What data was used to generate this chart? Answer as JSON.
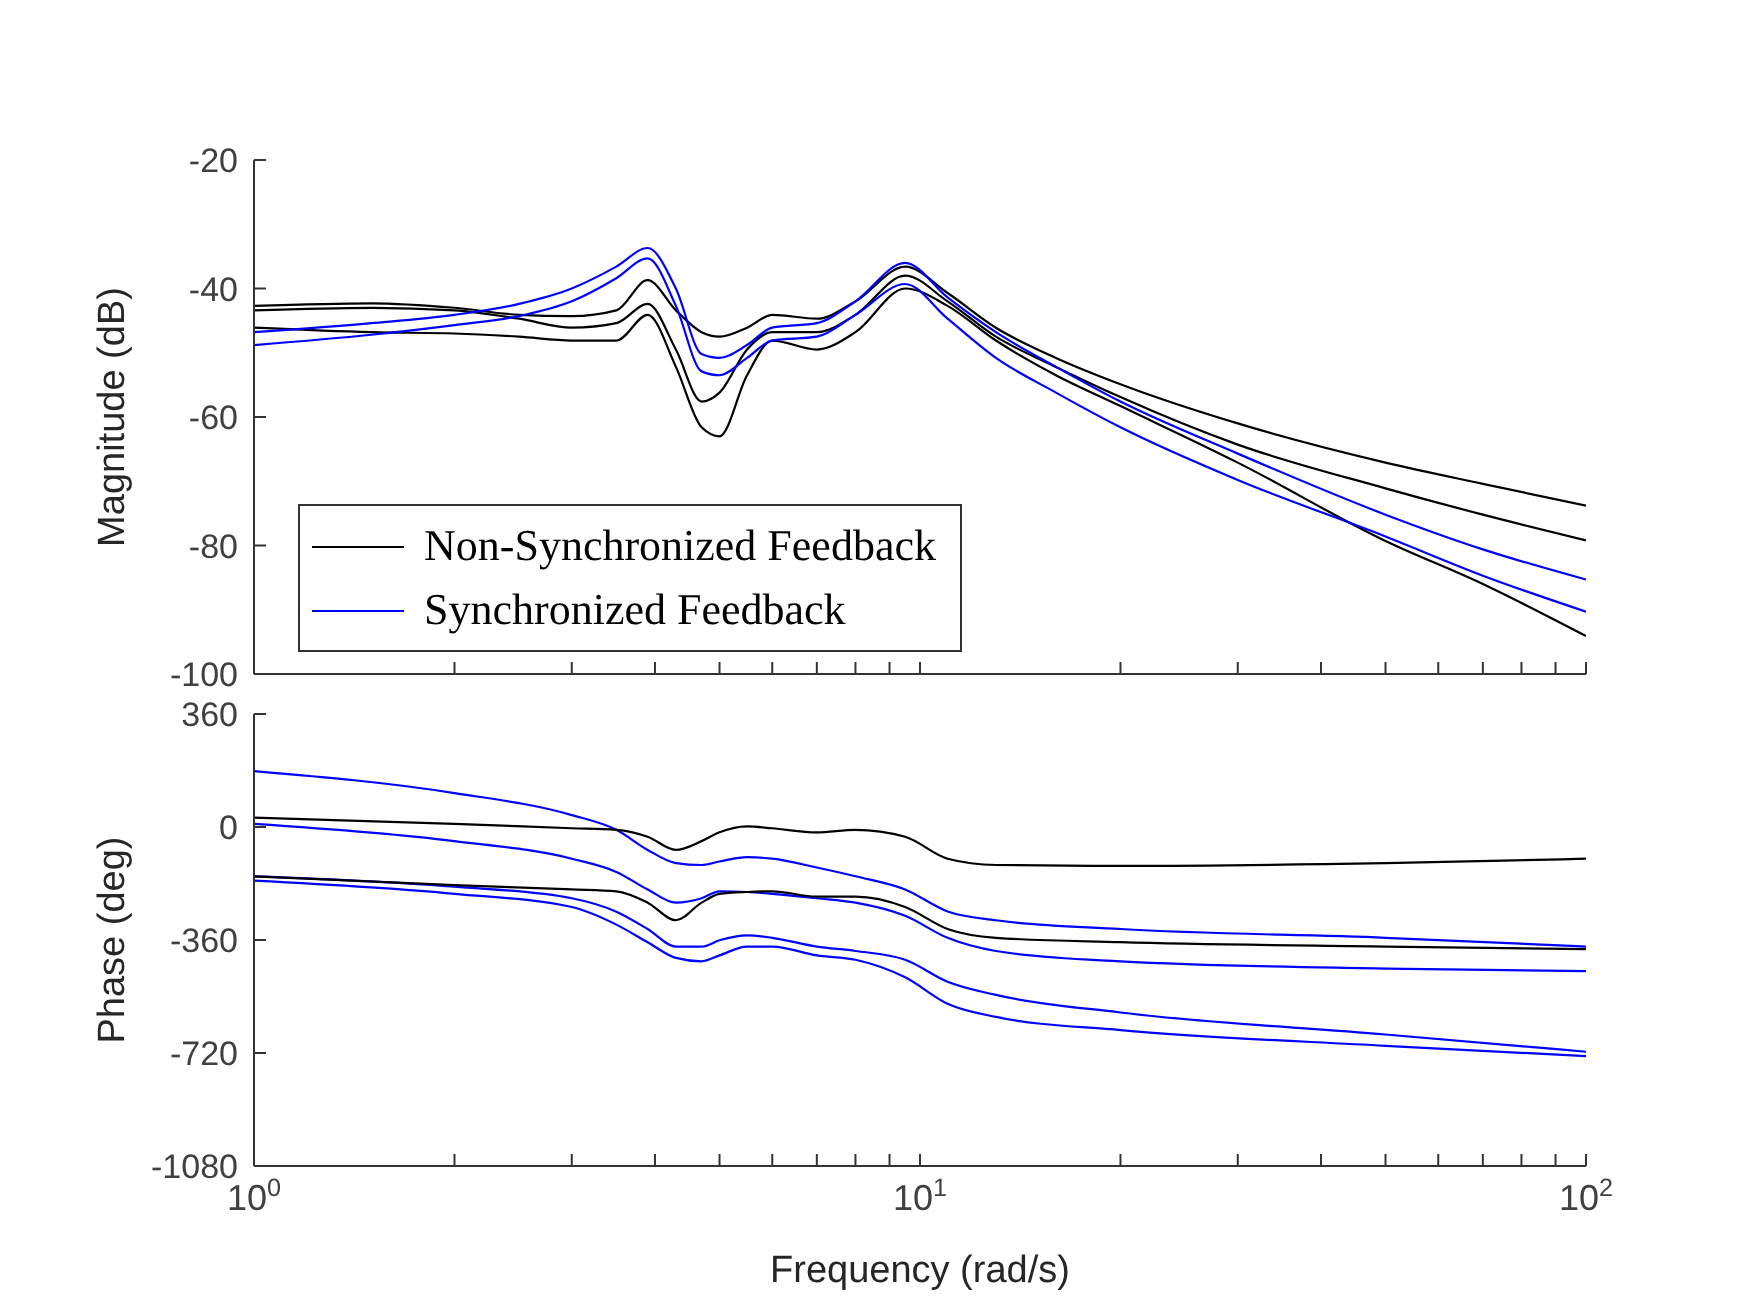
{
  "chart_data": [
    {
      "type": "line",
      "ylabel": "Magnitude (dB)",
      "log": "x",
      "tick_labels": "y",
      "legend": "bottom left",
      "marker": "none",
      "line_style": "solid",
      "xlim": [
        1,
        100
      ],
      "xticks": [
        {
          "value": 1,
          "label": null
        },
        {
          "value": 2,
          "label": null
        },
        {
          "value": 3,
          "label": null
        },
        {
          "value": 4,
          "label": null
        },
        {
          "value": 5,
          "label": null
        },
        {
          "value": 6,
          "label": null
        },
        {
          "value": 7,
          "label": null
        },
        {
          "value": 8,
          "label": null
        },
        {
          "value": 9,
          "label": null
        },
        {
          "value": 10,
          "label": null
        },
        {
          "value": 20,
          "label": null
        },
        {
          "value": 30,
          "label": null
        },
        {
          "value": 40,
          "label": null
        },
        {
          "value": 50,
          "label": null
        },
        {
          "value": 60,
          "label": null
        },
        {
          "value": 70,
          "label": null
        },
        {
          "value": 80,
          "label": null
        },
        {
          "value": 90,
          "label": null
        },
        {
          "value": 100,
          "label": null
        }
      ],
      "ylim": [
        -100,
        -20
      ],
      "yticks": [
        -100,
        -80,
        -60,
        -40,
        -20
      ],
      "x": [
        1,
        1.5,
        2,
        2.5,
        3,
        3.5,
        3.9,
        4.3,
        4.7,
        5,
        5.5,
        6,
        7,
        8,
        9.5,
        11,
        13,
        16,
        20,
        30,
        50,
        70,
        100
      ],
      "series": [
        {
          "name": "Non-Synchronized Feedback",
          "color": "#000000",
          "values": [
            -42.7,
            -42.3,
            -43,
            -44.1,
            -44.3,
            -43.4,
            -38.7,
            -43.4,
            -46.8,
            -47.5,
            -46.1,
            -44.1,
            -44.7,
            -42,
            -36.6,
            -40.7,
            -46.1,
            -50.8,
            -54.9,
            -61,
            -67.1,
            -70.4,
            -73.8
          ]
        },
        {
          "color": "#000000",
          "values": [
            -46.1,
            -46.8,
            -47,
            -47.5,
            -48.1,
            -48.1,
            -44.1,
            -52.2,
            -61.6,
            -63,
            -53.5,
            -48.1,
            -49.5,
            -46.8,
            -40,
            -42.7,
            -48.1,
            -53.5,
            -58.3,
            -67.1,
            -79.3,
            -86,
            -94.1
          ]
        },
        {
          "color": "#000000",
          "values": [
            -43.4,
            -43,
            -43.4,
            -44.7,
            -46.1,
            -45.4,
            -42.4,
            -49.5,
            -57.6,
            -56.2,
            -49.5,
            -46.8,
            -46.8,
            -44.1,
            -38,
            -42,
            -47.5,
            -52.2,
            -56.9,
            -64.3,
            -71.1,
            -75.2,
            -79.2
          ]
        },
        {
          "name": "Synchronized Feedback",
          "color": "#0000ff",
          "values": [
            -46.8,
            -45.4,
            -44.1,
            -42.4,
            -40,
            -36.6,
            -33.7,
            -40,
            -50.2,
            -50.8,
            -48.8,
            -46.1,
            -45.4,
            -42,
            -36,
            -41.4,
            -46.8,
            -52.2,
            -57.6,
            -65.7,
            -75.2,
            -80.6,
            -85.3
          ]
        },
        {
          "color": "#0000ff",
          "values": [
            -48.8,
            -47.2,
            -45.7,
            -44.3,
            -42,
            -38.4,
            -35.3,
            -42.7,
            -52.9,
            -53.5,
            -50.8,
            -48.1,
            -47.5,
            -44.1,
            -39.3,
            -44.7,
            -50.8,
            -56.2,
            -61.6,
            -69.8,
            -78.6,
            -84.7,
            -90.3
          ]
        }
      ]
    },
    {
      "type": "line",
      "xlabel": "Frequency  (rad/s)",
      "ylabel": "Phase (deg)",
      "log": "x",
      "marker": "none",
      "line_style": "solid",
      "xlim": [
        1,
        100
      ],
      "xticks": [
        {
          "value": 1,
          "label": "10$^{0}$"
        },
        {
          "value": 2,
          "label": null
        },
        {
          "value": 3,
          "label": null
        },
        {
          "value": 4,
          "label": null
        },
        {
          "value": 5,
          "label": null
        },
        {
          "value": 6,
          "label": null
        },
        {
          "value": 7,
          "label": null
        },
        {
          "value": 8,
          "label": null
        },
        {
          "value": 9,
          "label": null
        },
        {
          "value": 10,
          "label": "10$^{1}$"
        },
        {
          "value": 20,
          "label": null
        },
        {
          "value": 30,
          "label": null
        },
        {
          "value": 40,
          "label": null
        },
        {
          "value": 50,
          "label": null
        },
        {
          "value": 60,
          "label": null
        },
        {
          "value": 70,
          "label": null
        },
        {
          "value": 80,
          "label": null
        },
        {
          "value": 90,
          "label": null
        },
        {
          "value": 100,
          "label": "10$^{2}$"
        }
      ],
      "ylim": [
        -1080,
        360
      ],
      "yticks": [
        -1080,
        -720,
        -360,
        0,
        360
      ],
      "x": [
        1,
        2,
        3,
        3.5,
        3.9,
        4.3,
        4.7,
        5,
        5.5,
        6,
        7,
        8,
        9.5,
        11,
        13,
        20,
        50,
        100
      ],
      "series": [
        {
          "color": "#0000ff",
          "values": [
            178,
            108,
            38,
            -9,
            -73,
            -115,
            -121,
            -110,
            -96,
            -101,
            -129,
            -157,
            -199,
            -269,
            -297,
            -325,
            -353,
            -381
          ]
        },
        {
          "color": "#0000ff",
          "values": [
            10,
            -45,
            -101,
            -143,
            -199,
            -241,
            -227,
            -205,
            -207,
            -213,
            -227,
            -241,
            -283,
            -353,
            -395,
            -428,
            -451,
            -459
          ]
        },
        {
          "color": "#0000ff",
          "values": [
            -171,
            -213,
            -255,
            -311,
            -367,
            -417,
            -428,
            -409,
            -381,
            -381,
            -409,
            -423,
            -479,
            -563,
            -605,
            -647,
            -697,
            -730
          ]
        },
        {
          "color": "#0000ff",
          "values": [
            -157,
            -190,
            -227,
            -270,
            -325,
            -381,
            -381,
            -361,
            -345,
            -353,
            -381,
            -395,
            -423,
            -493,
            -535,
            -591,
            -661,
            -716
          ]
        },
        {
          "color": "#000000",
          "values": [
            30,
            10,
            -4,
            -9,
            -31,
            -73,
            -45,
            -17,
            2,
            -4,
            -17,
            -9,
            -31,
            -101,
            -121,
            -124,
            -115,
            -101
          ]
        },
        {
          "color": "#000000",
          "values": [
            -157,
            -185,
            -199,
            -205,
            -241,
            -297,
            -241,
            -213,
            -207,
            -205,
            -222,
            -222,
            -255,
            -325,
            -353,
            -367,
            -381,
            -389
          ]
        }
      ]
    }
  ]
}
